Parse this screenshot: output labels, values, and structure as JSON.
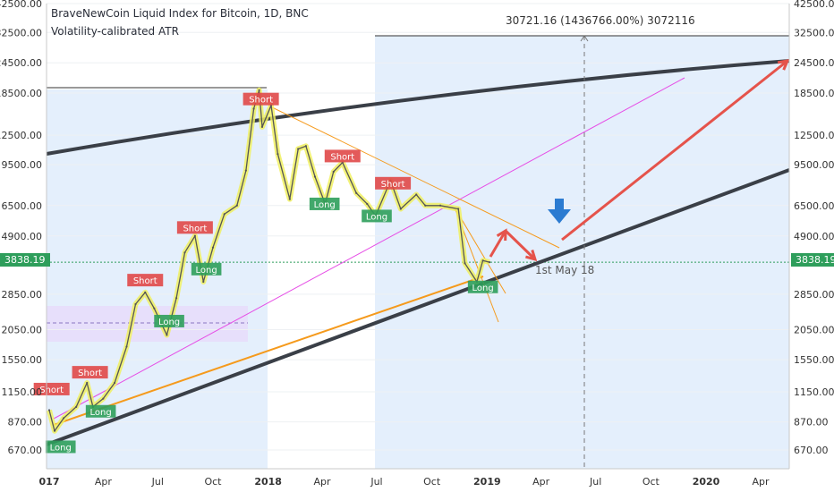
{
  "chart_data": {
    "type": "line",
    "title": "BraveNewCoin Liquid Index for Bitcoin, 1D, BNC",
    "subtitle": "Volatility-calibrated ATR",
    "yscale": "log",
    "ylim": [
      600,
      45000
    ],
    "y_ticks": [
      "670.00",
      "870.00",
      "1150.00",
      "1550.00",
      "2050.00",
      "2850.00",
      "3838.19",
      "4900.00",
      "6500.00",
      "9500.00",
      "12500.00",
      "18500.00",
      "24500.00",
      "32500.00",
      "42500.00"
    ],
    "x_ticks": [
      "017",
      "Apr",
      "Jul",
      "Oct",
      "2018",
      "Apr",
      "Jul",
      "Oct",
      "2019",
      "Apr",
      "Jul",
      "Oct",
      "2020",
      "Apr"
    ],
    "current_price": "3838.19",
    "measure_text": "30721.16 (1436766.00%) 3072116",
    "annotation": "1st May 18",
    "series": [
      {
        "values": [
          [
            "2017-01-01",
            970
          ],
          [
            "2017-01-10",
            800
          ],
          [
            "2017-01-25",
            900
          ],
          [
            "2017-02-15",
            1000
          ],
          [
            "2017-03-05",
            1250
          ],
          [
            "2017-03-15",
            1000
          ],
          [
            "2017-04-01",
            1080
          ],
          [
            "2017-04-20",
            1250
          ],
          [
            "2017-05-10",
            1750
          ],
          [
            "2017-05-25",
            2600
          ],
          [
            "2017-06-10",
            2900
          ],
          [
            "2017-06-25",
            2500
          ],
          [
            "2017-07-16",
            1950
          ],
          [
            "2017-08-01",
            2750
          ],
          [
            "2017-08-15",
            4200
          ],
          [
            "2017-09-01",
            4900
          ],
          [
            "2017-09-15",
            3200
          ],
          [
            "2017-10-01",
            4400
          ],
          [
            "2017-10-20",
            6000
          ],
          [
            "2017-11-10",
            6500
          ],
          [
            "2017-11-25",
            9000
          ],
          [
            "2017-12-08",
            16000
          ],
          [
            "2017-12-17",
            19000
          ],
          [
            "2017-12-22",
            13500
          ],
          [
            "2018-01-06",
            16500
          ],
          [
            "2018-01-17",
            10500
          ],
          [
            "2018-02-06",
            6900
          ],
          [
            "2018-02-20",
            11000
          ],
          [
            "2018-03-05",
            11300
          ],
          [
            "2018-03-20",
            8500
          ],
          [
            "2018-04-06",
            6600
          ],
          [
            "2018-04-20",
            8900
          ],
          [
            "2018-05-05",
            9700
          ],
          [
            "2018-05-28",
            7300
          ],
          [
            "2018-06-15",
            6600
          ],
          [
            "2018-06-29",
            5900
          ],
          [
            "2018-07-24",
            8200
          ],
          [
            "2018-08-10",
            6300
          ],
          [
            "2018-09-05",
            7200
          ],
          [
            "2018-09-20",
            6500
          ],
          [
            "2018-10-15",
            6500
          ],
          [
            "2018-11-14",
            6300
          ],
          [
            "2018-11-25",
            3800
          ],
          [
            "2018-12-15",
            3200
          ],
          [
            "2018-12-25",
            3900
          ],
          [
            "2019-01-05",
            3838.19
          ]
        ]
      }
    ],
    "signals": [
      {
        "label": "Short",
        "date": "2017-01-05",
        "price": 1180,
        "side": "short"
      },
      {
        "label": "Long",
        "date": "2017-01-20",
        "price": 690,
        "side": "long"
      },
      {
        "label": "Short",
        "date": "2017-03-10",
        "price": 1380,
        "side": "short"
      },
      {
        "label": "Long",
        "date": "2017-03-28",
        "price": 960,
        "side": "long"
      },
      {
        "label": "Short",
        "date": "2017-06-10",
        "price": 3250,
        "side": "short"
      },
      {
        "label": "Long",
        "date": "2017-07-20",
        "price": 2220,
        "side": "long"
      },
      {
        "label": "Short",
        "date": "2017-09-01",
        "price": 5300,
        "side": "short"
      },
      {
        "label": "Long",
        "date": "2017-09-20",
        "price": 3600,
        "side": "long"
      },
      {
        "label": "Short",
        "date": "2017-12-20",
        "price": 17500,
        "side": "short"
      },
      {
        "label": "Short",
        "date": "2018-05-05",
        "price": 10300,
        "side": "short"
      },
      {
        "label": "Long",
        "date": "2018-04-05",
        "price": 6600,
        "side": "long"
      },
      {
        "label": "Short",
        "date": "2018-07-28",
        "price": 8000,
        "side": "short"
      },
      {
        "label": "Long",
        "date": "2018-07-01",
        "price": 5900,
        "side": "long"
      },
      {
        "label": "Long",
        "date": "2018-12-25",
        "price": 3050,
        "side": "long"
      }
    ]
  },
  "colors": {
    "price_line": "#555555",
    "highlight": "#f0f060",
    "long_box": "#2e9e5b",
    "short_box": "#e04848",
    "trend_black": "#3a3f47",
    "trend_orange": "#f59a1c",
    "trend_magenta": "#e64de6",
    "arrow_red": "#e5534b",
    "arrow_blue": "#2b7bd1",
    "shade_blue": "#dbe9fb",
    "shade_purple": "#e7dcfa"
  }
}
